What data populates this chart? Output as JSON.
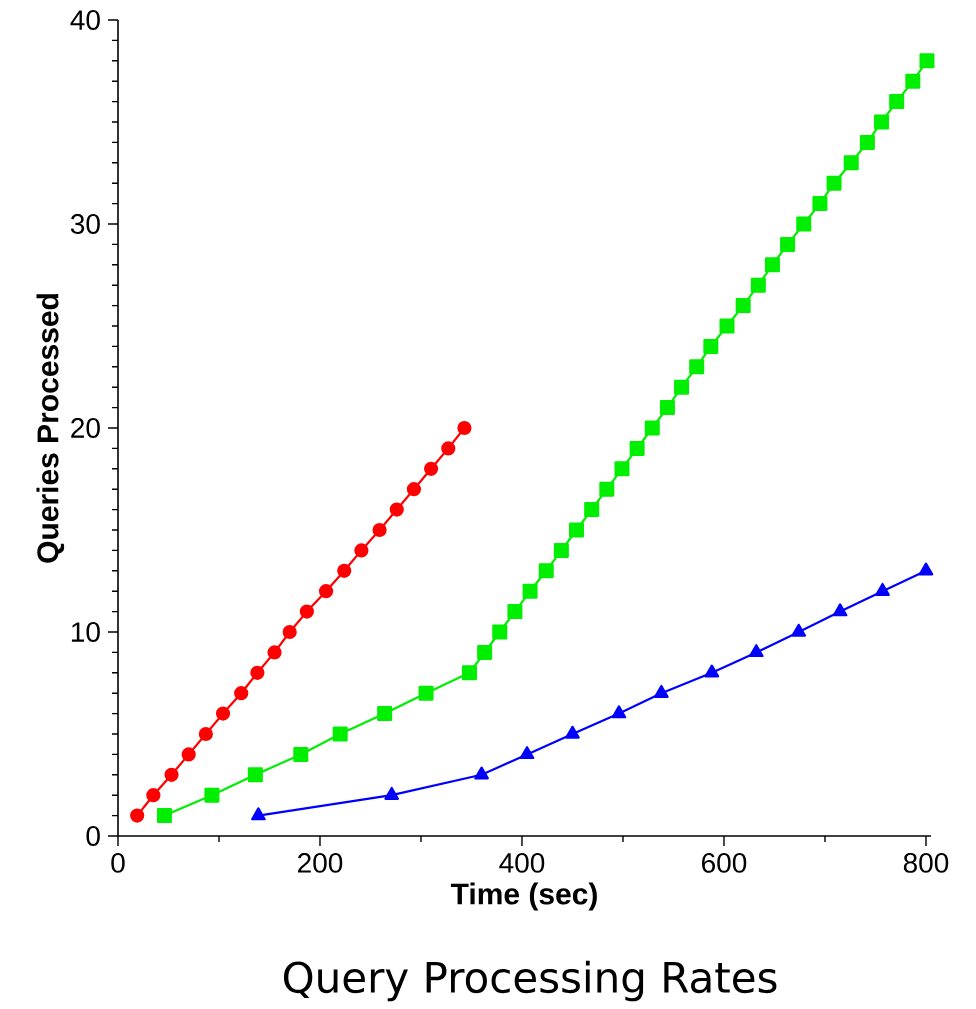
{
  "chart_data": {
    "type": "line",
    "title": "Query Processing Rates",
    "xlabel": "Time (sec)",
    "ylabel": "Queries Processed",
    "xlim": [
      0,
      805
    ],
    "ylim": [
      0,
      40
    ],
    "xticks": [
      0,
      200,
      400,
      600,
      800
    ],
    "yticks": [
      0,
      10,
      20,
      30,
      40
    ],
    "grid": false,
    "line_style": "solid",
    "series": [
      {
        "color": "#ff0000",
        "marker": "circle",
        "x": [
          19,
          35,
          53,
          70,
          87,
          104,
          122,
          138,
          155,
          170,
          187,
          206,
          224,
          241,
          259,
          276,
          293,
          310,
          327,
          343
        ],
        "values": [
          1,
          2,
          3,
          4,
          5,
          6,
          7,
          8,
          9,
          10,
          11,
          12,
          13,
          14,
          15,
          16,
          17,
          18,
          19,
          20
        ]
      },
      {
        "color": "#00ee00",
        "marker": "square",
        "x": [
          46,
          93,
          136,
          181,
          220,
          264,
          305,
          348,
          363,
          378,
          393,
          408,
          424,
          439,
          454,
          469,
          484,
          499,
          514,
          529,
          544,
          558,
          573,
          587,
          603,
          619,
          634,
          648,
          663,
          679,
          695,
          709,
          726,
          742,
          756,
          771,
          787,
          801
        ],
        "values": [
          1,
          2,
          3,
          4,
          5,
          6,
          7,
          8,
          9,
          10,
          11,
          12,
          13,
          14,
          15,
          16,
          17,
          18,
          19,
          20,
          21,
          22,
          23,
          24,
          25,
          26,
          27,
          28,
          29,
          30,
          31,
          32,
          33,
          34,
          35,
          36,
          37,
          38
        ]
      },
      {
        "color": "#0000ff",
        "marker": "triangle",
        "x": [
          139,
          271,
          360,
          405,
          450,
          496,
          538,
          588,
          632,
          674,
          715,
          757,
          800
        ],
        "values": [
          1,
          2,
          3,
          4,
          5,
          6,
          7,
          8,
          9,
          10,
          11,
          12,
          13
        ]
      }
    ]
  }
}
